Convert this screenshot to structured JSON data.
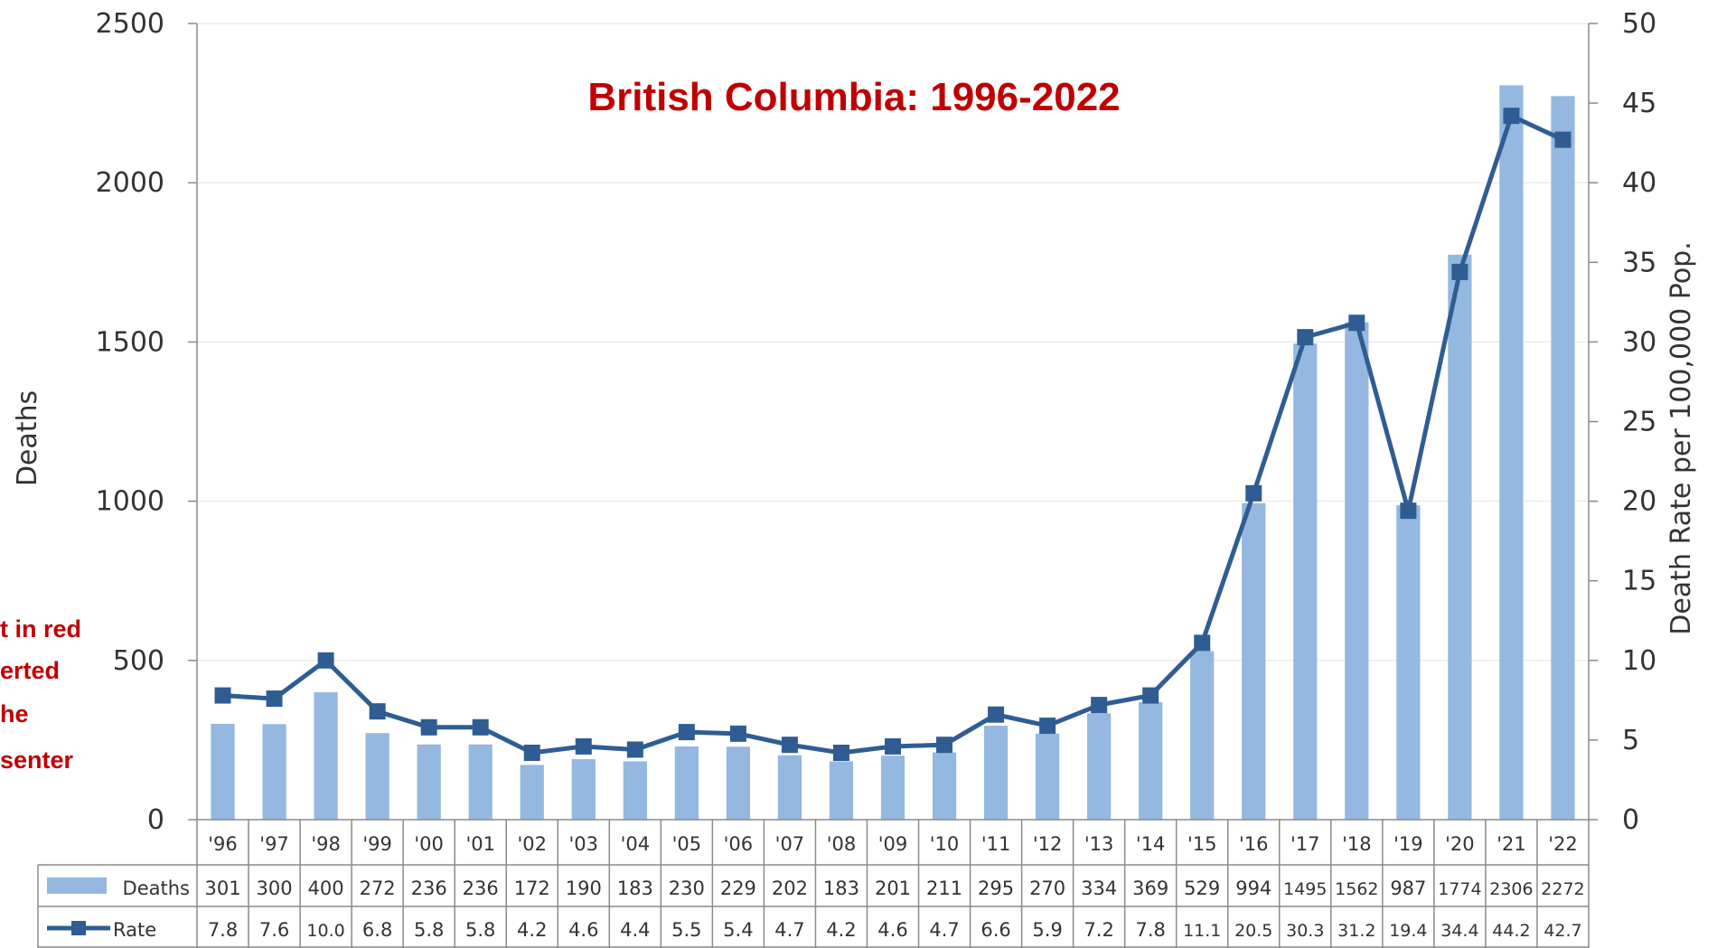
{
  "chart_data": {
    "type": "bar",
    "subtitle": "British Columbia: 1996-2022",
    "categories": [
      "'96",
      "'97",
      "'98",
      "'99",
      "'00",
      "'01",
      "'02",
      "'03",
      "'04",
      "'05",
      "'06",
      "'07",
      "'08",
      "'09",
      "'10",
      "'11",
      "'12",
      "'13",
      "'14",
      "'15",
      "'16",
      "'17",
      "'18",
      "'19",
      "'20",
      "'21",
      "'22"
    ],
    "series": [
      {
        "name": "Deaths",
        "kind": "bar",
        "axis": "left",
        "color": "#94b8e0",
        "values": [
          301,
          300,
          400,
          272,
          236,
          236,
          172,
          190,
          183,
          230,
          229,
          202,
          183,
          201,
          211,
          295,
          270,
          334,
          369,
          529,
          994,
          1495,
          1562,
          987,
          1774,
          2306,
          2272
        ]
      },
      {
        "name": "Rate",
        "kind": "line",
        "axis": "right",
        "color": "#2f5d93",
        "values": [
          7.8,
          7.6,
          10.0,
          6.8,
          5.8,
          5.8,
          4.2,
          4.6,
          4.4,
          5.5,
          5.4,
          4.7,
          4.2,
          4.6,
          4.7,
          6.6,
          5.9,
          7.2,
          7.8,
          11.1,
          20.5,
          30.3,
          31.2,
          19.4,
          34.4,
          44.2,
          42.7
        ]
      }
    ],
    "table_labels": {
      "deaths": [
        "301",
        "300",
        "400",
        "272",
        "236",
        "236",
        "172",
        "190",
        "183",
        "230",
        "229",
        "202",
        "183",
        "201",
        "211",
        "295",
        "270",
        "334",
        "369",
        "529",
        "994",
        "1495",
        "1562",
        "987",
        "1774",
        "2306",
        "2272"
      ],
      "rate": [
        "7.8",
        "7.6",
        "10.0",
        "6.8",
        "5.8",
        "5.8",
        "4.2",
        "4.6",
        "4.4",
        "5.5",
        "5.4",
        "4.7",
        "4.2",
        "4.6",
        "4.7",
        "6.6",
        "5.9",
        "7.2",
        "7.8",
        "11.1",
        "20.5",
        "30.3",
        "31.2",
        "19.4",
        "34.4",
        "44.2",
        "42.7"
      ]
    },
    "ylabel": "Deaths",
    "ylabel_right": "Death Rate per 100,000 Pop.",
    "ylim": [
      0,
      2500
    ],
    "yticks": [
      "0",
      "500",
      "1000",
      "1500",
      "2000",
      "2500"
    ],
    "ylim_right": [
      0,
      50
    ],
    "yticks_right": [
      "0",
      "5",
      "10",
      "15",
      "20",
      "25",
      "30",
      "35",
      "40",
      "45",
      "50"
    ],
    "grid": true,
    "legend": "data table below chart"
  },
  "annotation_lines": [
    "t in red",
    "erted",
    "he",
    "senter"
  ]
}
